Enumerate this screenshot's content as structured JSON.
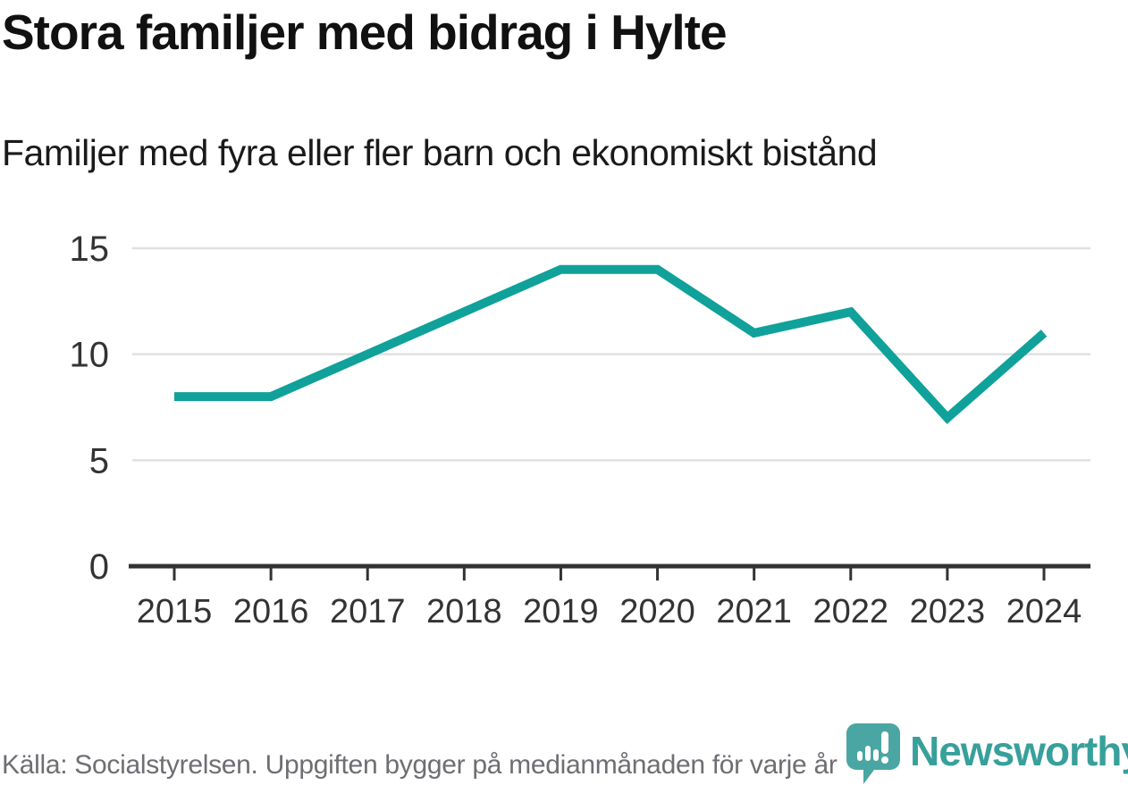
{
  "chart_data": {
    "type": "line",
    "title": "Stora familjer med bidrag i Hylte",
    "subtitle": "Familjer med fyra eller fler barn och ekonomiskt bistånd",
    "categories": [
      "2015",
      "2016",
      "2017",
      "2018",
      "2019",
      "2020",
      "2021",
      "2022",
      "2023",
      "2024"
    ],
    "series": [
      {
        "name": "Familjer med fyra eller fler barn och ekonomiskt bistånd",
        "values": [
          8,
          8,
          10,
          12,
          14,
          14,
          11,
          12,
          7,
          11
        ]
      }
    ],
    "xlabel": "",
    "ylabel": "",
    "ylim": [
      0,
      15
    ],
    "yticks": [
      0,
      5,
      10,
      15
    ],
    "grid": true,
    "legend": false
  },
  "footer": {
    "source": "Källa: Socialstyrelsen. Uppgiften bygger på medianmånaden för varje år",
    "brand": "Newsworthy"
  },
  "icons": {
    "logo_icon": "newsworthy-speech-bubble-barchart-icon"
  },
  "colors": {
    "line": "#10a19a",
    "axis": "#333333",
    "tick": "#333333",
    "grid": "#e0e0e0",
    "axis_label": "#333333",
    "title": "#111111",
    "subtitle": "#1a1a1a",
    "muted_text": "#6e6e73",
    "brand_text": "#38a09b",
    "brand_icon": "#4aa6a2",
    "background": "#ffffff"
  }
}
